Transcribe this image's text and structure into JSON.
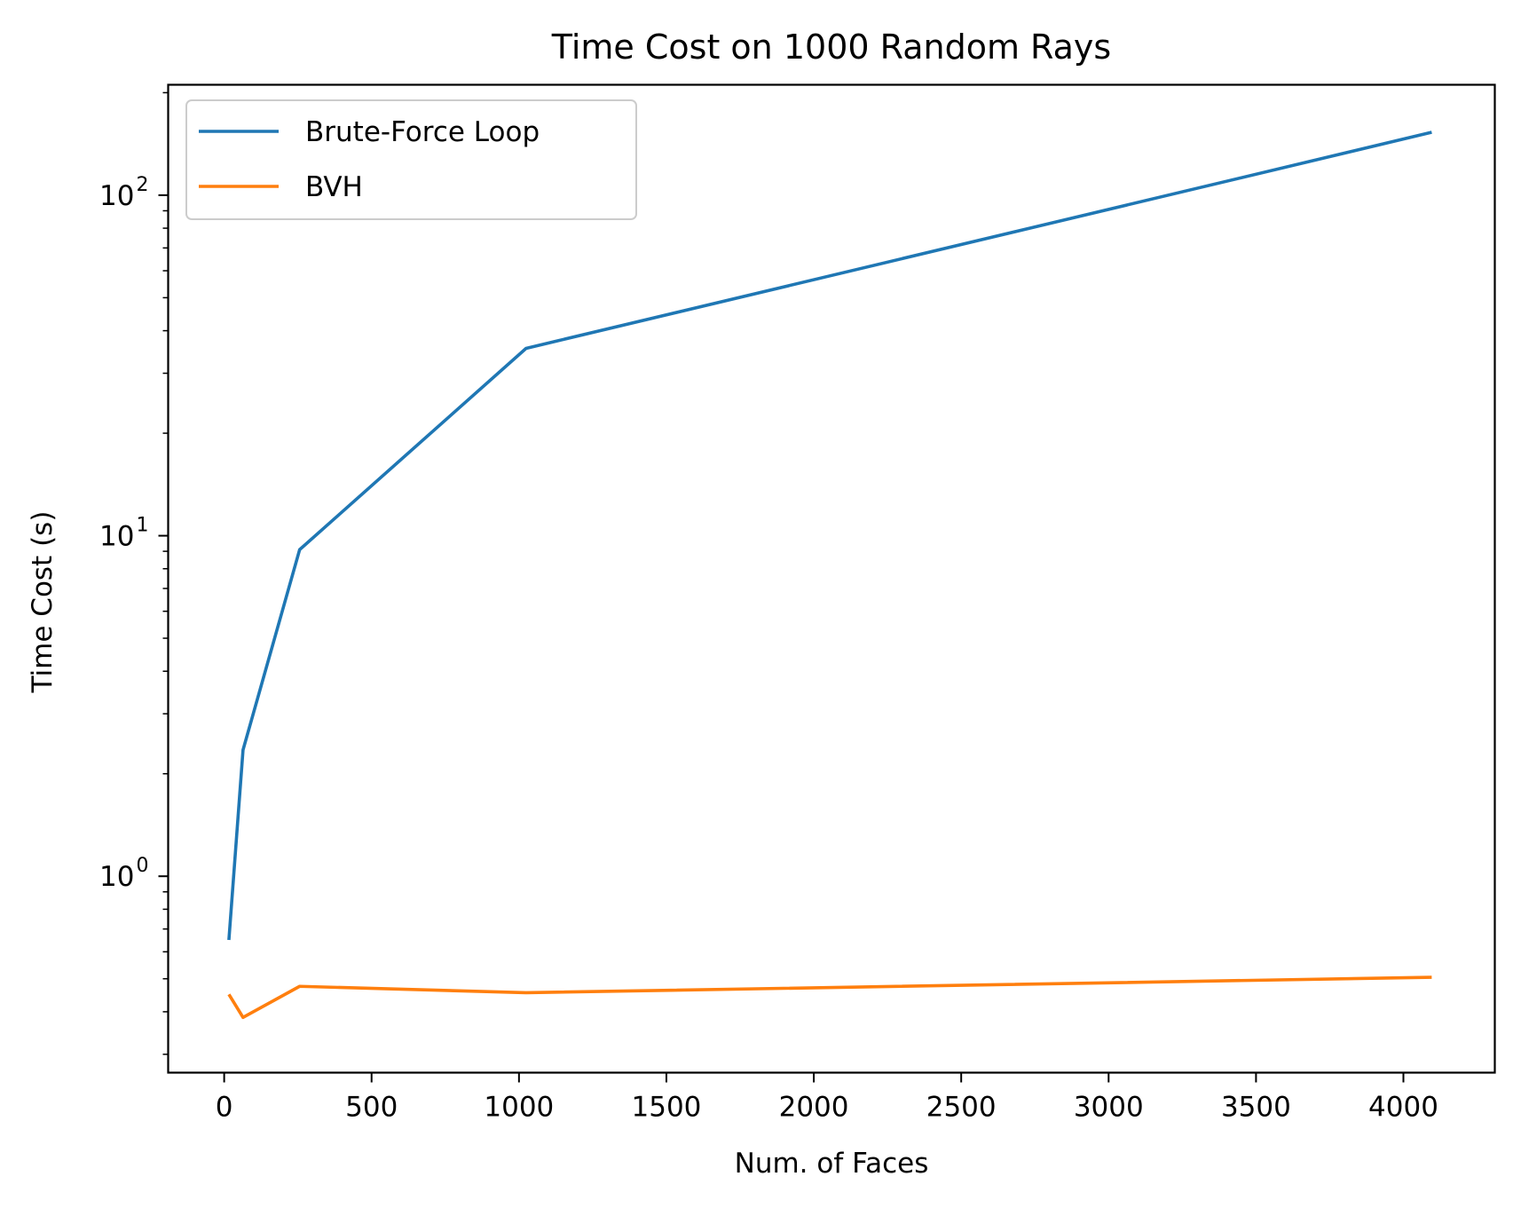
{
  "chart_data": {
    "type": "line",
    "title": "Time Cost on 1000 Random Rays",
    "xlabel": "Num. of Faces",
    "ylabel": "Time Cost (s)",
    "xscale": "linear",
    "yscale": "log",
    "xlim": [
      -190,
      4310
    ],
    "ylim": [
      0.265,
      211
    ],
    "grid": false,
    "legend_position": "upper left",
    "x": [
      16,
      64,
      256,
      1024,
      4096
    ],
    "series": [
      {
        "name": "Brute-Force Loop",
        "color": "#1f77b4",
        "values": [
          0.65,
          2.35,
          9.1,
          35.5,
          153
        ]
      },
      {
        "name": "BVH",
        "color": "#ff7f0e",
        "values": [
          0.45,
          0.385,
          0.475,
          0.455,
          0.505
        ]
      }
    ],
    "x_ticks": [
      {
        "value": 0,
        "label": "0"
      },
      {
        "value": 500,
        "label": "500"
      },
      {
        "value": 1000,
        "label": "1000"
      },
      {
        "value": 1500,
        "label": "1500"
      },
      {
        "value": 2000,
        "label": "2000"
      },
      {
        "value": 2500,
        "label": "2500"
      },
      {
        "value": 3000,
        "label": "3000"
      },
      {
        "value": 3500,
        "label": "3500"
      },
      {
        "value": 4000,
        "label": "4000"
      }
    ],
    "y_ticks": [
      {
        "value": 1,
        "base": "10",
        "exponent": "0"
      },
      {
        "value": 10,
        "base": "10",
        "exponent": "1"
      },
      {
        "value": 100,
        "base": "10",
        "exponent": "2"
      }
    ]
  }
}
